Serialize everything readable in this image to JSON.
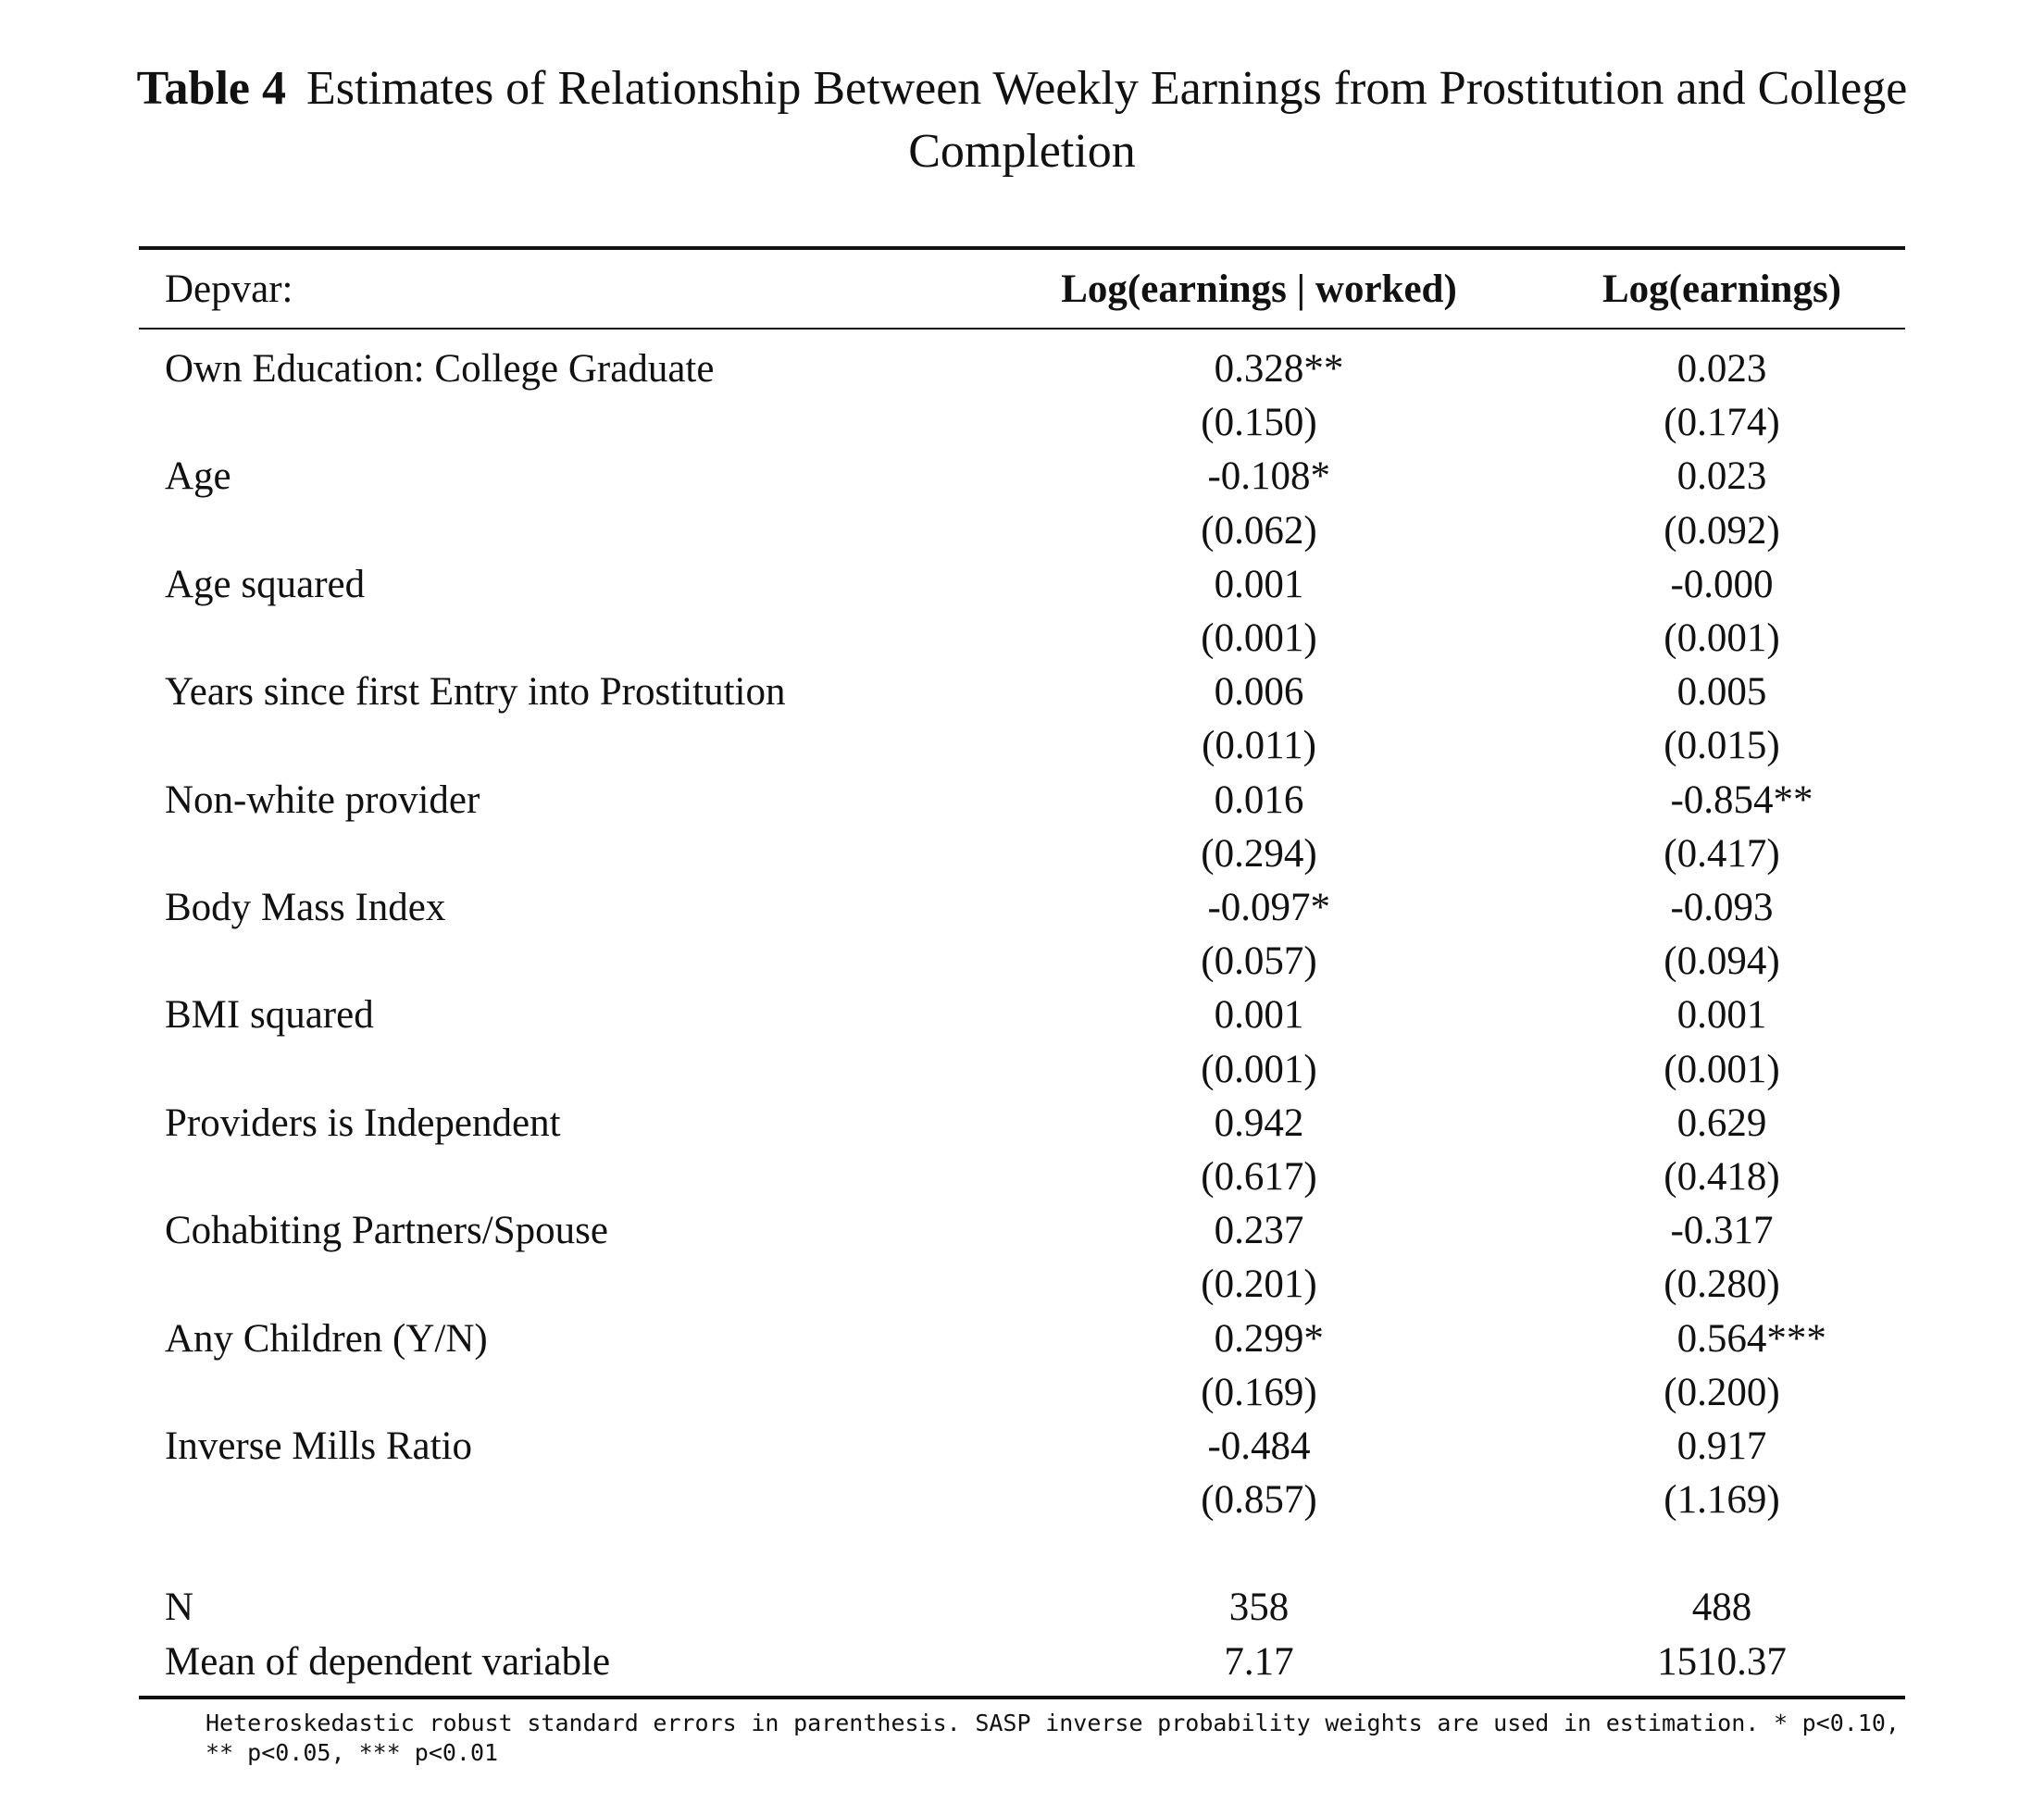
{
  "caption": {
    "label": "Table 4",
    "title": "Estimates of Relationship Between Weekly Earnings from Prostitution and College Completion"
  },
  "table": {
    "header": {
      "label": "Depvar:",
      "col1": "Log(earnings | worked)",
      "col2": "Log(earnings)"
    },
    "rows": [
      {
        "label": "Own Education: College Graduate",
        "c1": "0.328",
        "c1_stars": "**",
        "c2": "0.023",
        "c2_stars": ""
      },
      {
        "label": "",
        "c1": "(0.150)",
        "c1_stars": "",
        "c2": "(0.174)",
        "c2_stars": ""
      },
      {
        "label": "Age",
        "c1": "-0.108",
        "c1_stars": "*",
        "c2": "0.023",
        "c2_stars": ""
      },
      {
        "label": "",
        "c1": "(0.062)",
        "c1_stars": "",
        "c2": "(0.092)",
        "c2_stars": ""
      },
      {
        "label": "Age squared",
        "c1": "0.001",
        "c1_stars": "",
        "c2": "-0.000",
        "c2_stars": ""
      },
      {
        "label": "",
        "c1": "(0.001)",
        "c1_stars": "",
        "c2": "(0.001)",
        "c2_stars": ""
      },
      {
        "label": "Years since first Entry into Prostitution",
        "c1": "0.006",
        "c1_stars": "",
        "c2": "0.005",
        "c2_stars": ""
      },
      {
        "label": "",
        "c1": "(0.011)",
        "c1_stars": "",
        "c2": "(0.015)",
        "c2_stars": ""
      },
      {
        "label": "Non-white provider",
        "c1": "0.016",
        "c1_stars": "",
        "c2": "-0.854",
        "c2_stars": "**"
      },
      {
        "label": "",
        "c1": "(0.294)",
        "c1_stars": "",
        "c2": "(0.417)",
        "c2_stars": ""
      },
      {
        "label": "Body Mass Index",
        "c1": "-0.097",
        "c1_stars": "*",
        "c2": "-0.093",
        "c2_stars": ""
      },
      {
        "label": "",
        "c1": "(0.057)",
        "c1_stars": "",
        "c2": "(0.094)",
        "c2_stars": ""
      },
      {
        "label": "BMI squared",
        "c1": "0.001",
        "c1_stars": "",
        "c2": "0.001",
        "c2_stars": ""
      },
      {
        "label": "",
        "c1": "(0.001)",
        "c1_stars": "",
        "c2": "(0.001)",
        "c2_stars": ""
      },
      {
        "label": "Providers is Independent",
        "c1": "0.942",
        "c1_stars": "",
        "c2": "0.629",
        "c2_stars": ""
      },
      {
        "label": "",
        "c1": "(0.617)",
        "c1_stars": "",
        "c2": "(0.418)",
        "c2_stars": ""
      },
      {
        "label": "Cohabiting Partners/Spouse",
        "c1": "0.237",
        "c1_stars": "",
        "c2": "-0.317",
        "c2_stars": ""
      },
      {
        "label": "",
        "c1": "(0.201)",
        "c1_stars": "",
        "c2": "(0.280)",
        "c2_stars": ""
      },
      {
        "label": "Any Children (Y/N)",
        "c1": "0.299",
        "c1_stars": "*",
        "c2": "0.564",
        "c2_stars": "***"
      },
      {
        "label": "",
        "c1": "(0.169)",
        "c1_stars": "",
        "c2": "(0.200)",
        "c2_stars": ""
      },
      {
        "label": "Inverse Mills Ratio",
        "c1": "-0.484",
        "c1_stars": "",
        "c2": "0.917",
        "c2_stars": ""
      },
      {
        "label": "",
        "c1": "(0.857)",
        "c1_stars": "",
        "c2": "(1.169)",
        "c2_stars": ""
      }
    ],
    "stats": [
      {
        "label": "N",
        "c1": "358",
        "c1_stars": "",
        "c2": "488",
        "c2_stars": ""
      },
      {
        "label": "Mean of dependent variable",
        "c1": "7.17",
        "c1_stars": "",
        "c2": "1510.37",
        "c2_stars": ""
      }
    ]
  },
  "notes": "Heteroskedastic robust standard errors in parenthesis. SASP inverse probability weights are used in estimation. * p<0.10, ** p<0.05, *** p<0.01"
}
